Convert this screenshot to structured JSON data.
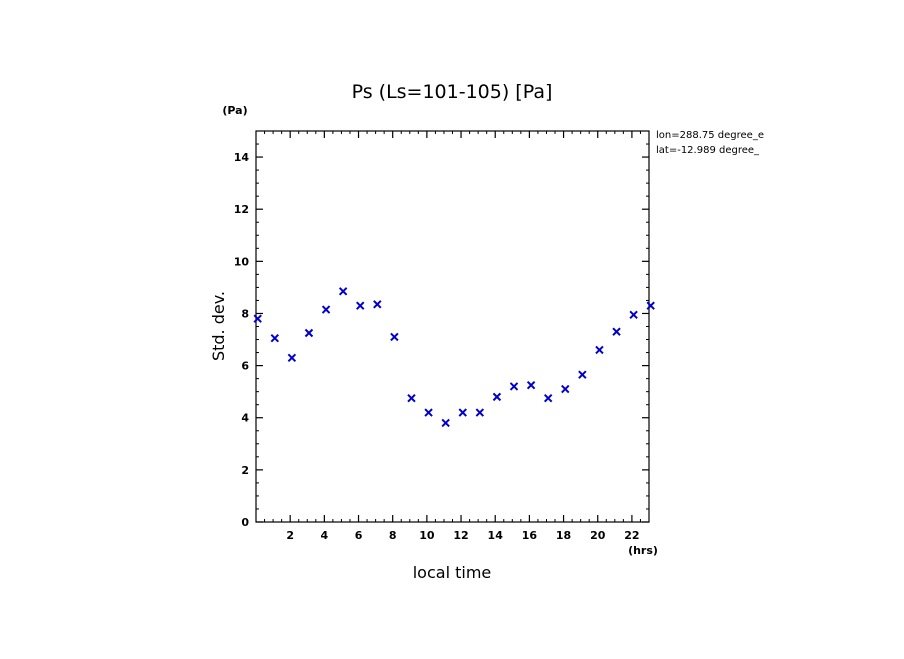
{
  "chart_data": {
    "type": "scatter",
    "title": "Ps (Ls=101-105) [Pa]",
    "xlabel": "local time",
    "ylabel": "Std. dev.",
    "x_unit": "(hrs)",
    "y_unit": "(Pa)",
    "xlim": [
      0,
      23
    ],
    "ylim": [
      0,
      15
    ],
    "x_ticks": [
      2,
      4,
      6,
      8,
      10,
      12,
      14,
      16,
      18,
      20,
      22
    ],
    "y_ticks": [
      0,
      2,
      4,
      6,
      8,
      10,
      12,
      14
    ],
    "x_minor_step": 0.5,
    "y_minor_step": 0.5,
    "grid": false,
    "marker": "x",
    "marker_color": "#0000cc",
    "annotations": [
      "lon=288.75 degree_e",
      "lat=-12.989 degree_"
    ],
    "series": [
      {
        "x": [
          0.1,
          1.1,
          2.1,
          3.1,
          4.1,
          5.1,
          6.1,
          7.1,
          8.1,
          9.1,
          10.1,
          11.1,
          12.1,
          13.1,
          14.1,
          15.1,
          16.1,
          17.1,
          18.1,
          19.1,
          20.1,
          21.1,
          22.1,
          23.1
        ],
        "y": [
          7.8,
          7.05,
          6.3,
          7.25,
          8.15,
          8.85,
          8.3,
          8.35,
          7.1,
          4.75,
          4.2,
          3.8,
          4.2,
          4.2,
          4.8,
          5.2,
          5.25,
          4.75,
          5.1,
          5.65,
          6.6,
          7.3,
          7.95,
          8.3
        ]
      }
    ]
  }
}
